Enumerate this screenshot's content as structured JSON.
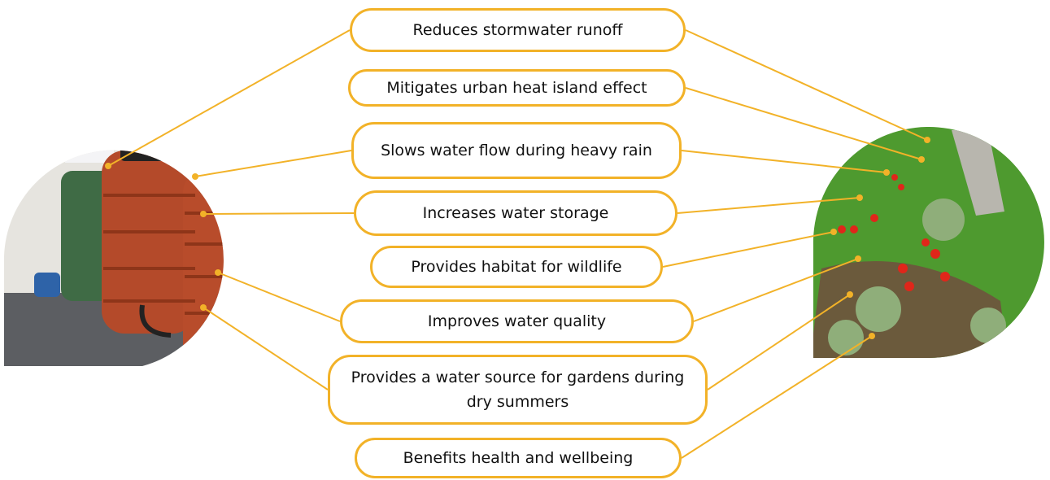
{
  "benefits": [
    "Reduces stormwater runoff",
    "Mitigates urban heat island effect",
    "Slows water flow during heavy rain",
    "Increases water storage",
    "Provides habitat for wildlife",
    "Improves water quality",
    "Provides a water source for gardens during dry summers",
    "Benefits health and wellbeing"
  ]
}
